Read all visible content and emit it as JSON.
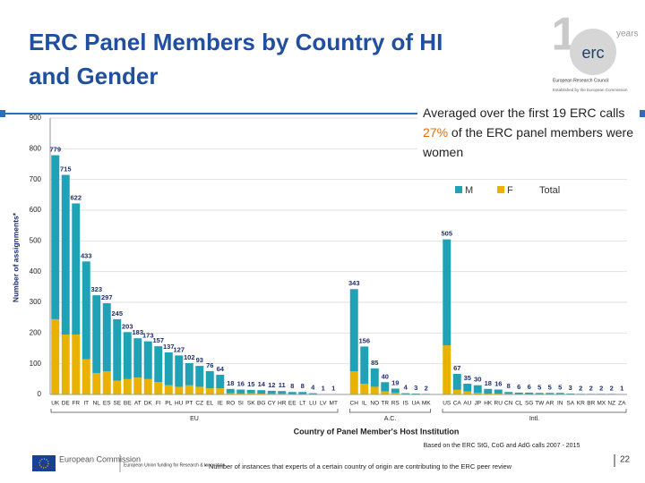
{
  "slide": {
    "title": "ERC Panel Members by Country of HI and Gender",
    "annotation": {
      "before": "Averaged over the first 19 ERC calls ",
      "highlight": "27%",
      "after": " of the ERC panel members were women"
    },
    "logo": {
      "mark": "erc",
      "years": "years",
      "line1": "European Research Council",
      "line2": "Established by the European Commission"
    },
    "footer": {
      "commission": "European Commission",
      "funding": "European Union funding for Research & Innovation",
      "footnote": "* Number of instances that experts of a certain country of origin are contributing to the ERC peer review",
      "page": "22"
    }
  },
  "chart_data": {
    "type": "bar",
    "stacked": true,
    "y_label": "Number of assignments*",
    "x_label": "Country of Panel Member's Host Institution",
    "source": "Based on the ERC StG, CoG and AdG calls 2007 - 2015",
    "groups": [
      {
        "label": "EU",
        "categories": [
          "UK",
          "DE",
          "FR",
          "IT",
          "NL",
          "ES",
          "SE",
          "BE",
          "AT",
          "DK",
          "FI",
          "PL",
          "HU",
          "PT",
          "CZ",
          "EL",
          "IE",
          "RO",
          "SI",
          "SK",
          "BG",
          "CY",
          "HR",
          "EE",
          "LT",
          "LU",
          "LV",
          "MT"
        ]
      },
      {
        "label": "A.C.",
        "categories": [
          "CH",
          "IL",
          "NO",
          "TR",
          "RS",
          "IS",
          "UA",
          "MK"
        ]
      },
      {
        "label": "Intl.",
        "categories": [
          "US",
          "CA",
          "AU",
          "JP",
          "HK",
          "RU",
          "CN",
          "CL",
          "SG",
          "TW",
          "AR",
          "IN",
          "SA",
          "KR",
          "BR",
          "MX",
          "NZ",
          "ZA"
        ]
      }
    ],
    "series": [
      {
        "name": "M",
        "color": "#1fa2b6",
        "values": [
          534,
          520,
          427,
          318,
          253,
          222,
          200,
          153,
          128,
          123,
          117,
          107,
          102,
          72,
          68,
          56,
          44,
          14,
          13,
          11,
          11,
          10,
          9,
          7,
          7,
          3,
          1,
          1,
          268,
          121,
          60,
          30,
          14,
          3,
          2,
          2,
          345,
          52,
          25,
          25,
          15,
          13,
          6,
          5,
          5,
          4,
          4,
          4,
          2,
          2,
          2,
          2,
          2,
          1
        ]
      },
      {
        "name": "F",
        "color": "#e9b200",
        "values": [
          245,
          195,
          195,
          115,
          70,
          75,
          45,
          50,
          55,
          50,
          40,
          30,
          25,
          30,
          25,
          20,
          20,
          4,
          3,
          4,
          3,
          2,
          2,
          1,
          1,
          1,
          0,
          0,
          75,
          35,
          25,
          10,
          5,
          1,
          1,
          0,
          160,
          15,
          10,
          5,
          3,
          3,
          2,
          1,
          1,
          1,
          1,
          1,
          1,
          0,
          0,
          0,
          0,
          0
        ]
      },
      {
        "name": "Total",
        "values": [
          779,
          715,
          622,
          433,
          323,
          297,
          245,
          203,
          183,
          173,
          157,
          137,
          127,
          102,
          93,
          76,
          64,
          18,
          16,
          15,
          14,
          12,
          11,
          8,
          8,
          4,
          1,
          1,
          343,
          156,
          85,
          40,
          19,
          4,
          3,
          2,
          505,
          67,
          35,
          30,
          18,
          16,
          8,
          6,
          6,
          5,
          5,
          5,
          3,
          2,
          2,
          2,
          2,
          1
        ]
      }
    ],
    "ylim": [
      0,
      900
    ],
    "yticks": [
      0,
      100,
      200,
      300,
      400,
      500,
      600,
      700,
      800,
      900
    ],
    "grid": true
  }
}
